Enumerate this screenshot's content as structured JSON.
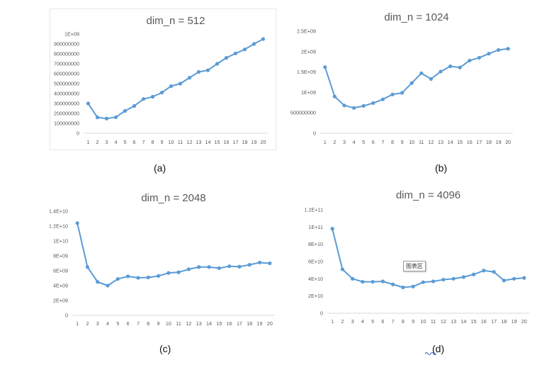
{
  "line_color": "#5b9bd5",
  "captions": [
    "(a)",
    "(b)",
    "(c)",
    "(d)"
  ],
  "tooltip_text": "图表区",
  "chart_data": [
    {
      "type": "line",
      "title": "dim_n = 512",
      "x": [
        1,
        2,
        3,
        4,
        5,
        6,
        7,
        8,
        9,
        10,
        11,
        12,
        13,
        14,
        15,
        16,
        17,
        18,
        19,
        20
      ],
      "series": [
        {
          "values": [
            300000000,
            160000000,
            148000000,
            162000000,
            225000000,
            275000000,
            345000000,
            368000000,
            410000000,
            475000000,
            500000000,
            560000000,
            618000000,
            635000000,
            700000000,
            760000000,
            805000000,
            845000000,
            900000000,
            950000000
          ]
        }
      ],
      "ylim": [
        0,
        1000000000
      ],
      "yticks": [
        0,
        100000000,
        200000000,
        300000000,
        400000000,
        500000000,
        600000000,
        700000000,
        800000000,
        900000000,
        1000000000
      ],
      "ytick_labels": [
        "0",
        "100000000",
        "200000000",
        "300000000",
        "400000000",
        "500000000",
        "600000000",
        "700000000",
        "800000000",
        "900000000",
        "1E+09"
      ],
      "grid": false,
      "legend": "none"
    },
    {
      "type": "line",
      "title": "dim_n = 1024",
      "x": [
        1,
        2,
        3,
        4,
        5,
        6,
        7,
        8,
        9,
        10,
        11,
        12,
        13,
        14,
        15,
        16,
        17,
        18,
        19,
        20
      ],
      "series": [
        {
          "values": [
            1620000000,
            900000000,
            680000000,
            620000000,
            670000000,
            740000000,
            830000000,
            950000000,
            990000000,
            1230000000,
            1470000000,
            1330000000,
            1510000000,
            1640000000,
            1610000000,
            1780000000,
            1850000000,
            1950000000,
            2040000000,
            2070000000
          ]
        }
      ],
      "ylim": [
        0,
        2500000000
      ],
      "yticks": [
        0,
        500000000,
        1000000000,
        1500000000,
        2000000000,
        2500000000
      ],
      "ytick_labels": [
        "0",
        "500000000",
        "1E+09",
        "1.5E+09",
        "2E+09",
        "2.5E+09"
      ],
      "grid": false,
      "legend": "none"
    },
    {
      "type": "line",
      "title": "dim_n = 2048",
      "x": [
        1,
        2,
        3,
        4,
        5,
        6,
        7,
        8,
        9,
        10,
        11,
        12,
        13,
        14,
        15,
        16,
        17,
        18,
        19,
        20
      ],
      "series": [
        {
          "values": [
            12400000000,
            6500000000,
            4500000000,
            4000000000,
            4900000000,
            5250000000,
            5050000000,
            5100000000,
            5300000000,
            5700000000,
            5800000000,
            6200000000,
            6500000000,
            6500000000,
            6350000000,
            6600000000,
            6550000000,
            6800000000,
            7100000000,
            7000000000
          ]
        }
      ],
      "ylim": [
        0,
        14000000000
      ],
      "yticks": [
        0,
        2000000000,
        4000000000,
        6000000000,
        8000000000,
        10000000000,
        12000000000,
        14000000000
      ],
      "ytick_labels": [
        "0",
        "2E+09",
        "4E+09",
        "6E+09",
        "8E+09",
        "1E+10",
        "1.2E+10",
        "1.4E+10"
      ],
      "grid": false,
      "legend": "none"
    },
    {
      "type": "line",
      "title": "dim_n = 4096",
      "x": [
        1,
        2,
        3,
        4,
        5,
        6,
        7,
        8,
        9,
        10,
        11,
        12,
        13,
        14,
        15,
        16,
        17,
        18,
        19,
        20
      ],
      "series": [
        {
          "values": [
            98000000000,
            51000000000,
            40000000000,
            36500000000,
            36500000000,
            37000000000,
            33500000000,
            30000000000,
            31000000000,
            36000000000,
            37000000000,
            39000000000,
            40000000000,
            42000000000,
            45000000000,
            49500000000,
            48000000000,
            38000000000,
            40000000000,
            41000000000
          ]
        }
      ],
      "ylim": [
        0,
        120000000000
      ],
      "yticks": [
        0,
        20000000000,
        40000000000,
        60000000000,
        80000000000,
        100000000000,
        120000000000
      ],
      "ytick_labels": [
        "0",
        "2E+10",
        "4E+10",
        "6E+10",
        "8E+10",
        "1E+11",
        "1.2E+11"
      ],
      "grid": false,
      "legend": "none"
    }
  ]
}
